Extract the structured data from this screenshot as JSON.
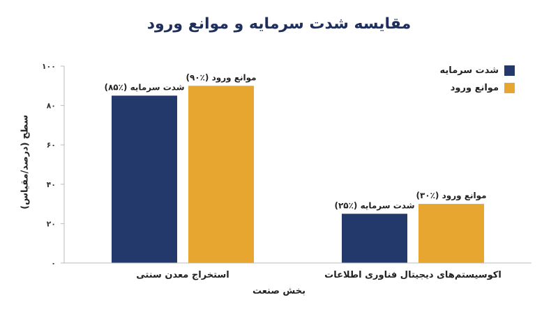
{
  "chart_data": {
    "type": "bar",
    "title": "مقایسه شدت سرمایه و موانع ورود",
    "xlabel": "بخش صنعت",
    "ylabel": "سطح (درصد/مقیاس)",
    "categories": [
      "استخراج معدن سنتی",
      "اکوسیستم‌های دیجیتال فناوری اطلاعات"
    ],
    "series": [
      {
        "name": "شدت سرمایه",
        "color": "#23386b",
        "values": [
          85,
          25
        ],
        "labels": [
          "شدت سرمایه (٪۸۵)",
          "شدت سرمایه (٪۲۵)"
        ]
      },
      {
        "name": "موانع ورود",
        "color": "#e6a630",
        "values": [
          90,
          30
        ],
        "labels": [
          "موانع ورود (٪۹۰)",
          "موانع ورود (٪۳۰)"
        ]
      }
    ],
    "ylim": [
      0,
      100
    ],
    "yticks": [
      {
        "value": 0,
        "label": "۰"
      },
      {
        "value": 20,
        "label": "۲۰"
      },
      {
        "value": 40,
        "label": "۴۰"
      },
      {
        "value": 60,
        "label": "۶۰"
      },
      {
        "value": 80,
        "label": "۸۰"
      },
      {
        "value": 100,
        "label": "۱۰۰"
      }
    ],
    "grid": false,
    "legend_position": "top-right"
  }
}
